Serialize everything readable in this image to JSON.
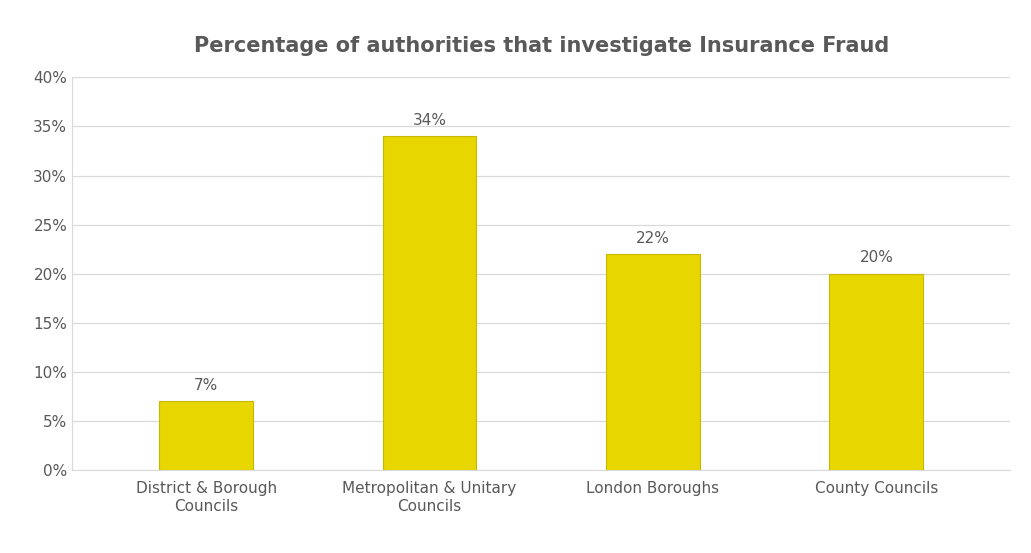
{
  "chart_data": {
    "type": "bar",
    "title": "Percentage of authorities that investigate Insurance Fraud",
    "categories": [
      "District & Borough Councils",
      "Metropolitan & Unitary Councils",
      "London Boroughs",
      "County Councils"
    ],
    "values": [
      7,
      34,
      22,
      20
    ],
    "value_labels": [
      "7%",
      "34%",
      "22%",
      "20%"
    ],
    "data_labels": true,
    "color": "#e8d600",
    "ylim": [
      0,
      40
    ],
    "yticks": [
      {
        "value": 0,
        "label": "0%"
      },
      {
        "value": 5,
        "label": "5%"
      },
      {
        "value": 10,
        "label": "10%"
      },
      {
        "value": 15,
        "label": "15%"
      },
      {
        "value": 20,
        "label": "20%"
      },
      {
        "value": 25,
        "label": "25%"
      },
      {
        "value": 30,
        "label": "30%"
      },
      {
        "value": 35,
        "label": "35%"
      },
      {
        "value": 40,
        "label": "40%"
      }
    ],
    "grid": true
  }
}
